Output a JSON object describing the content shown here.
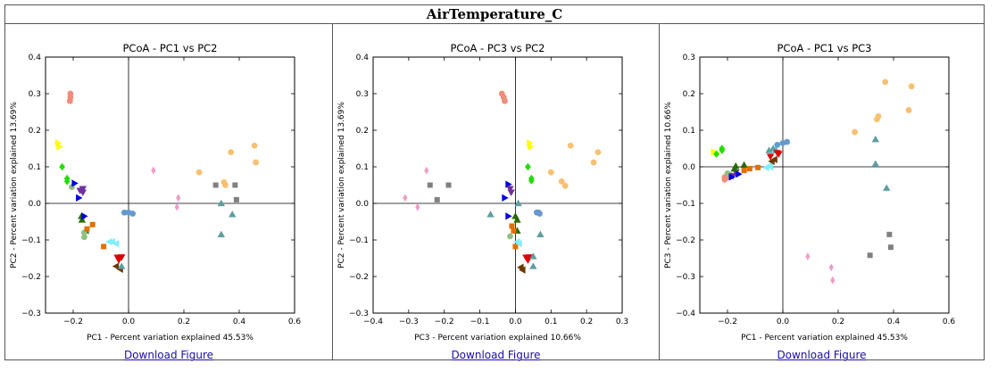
{
  "page_title": "AirTemperature_C",
  "download_label": "Download Figure",
  "chart_data": [
    {
      "type": "scatter",
      "title": "PCoA - PC1 vs PC2",
      "xlabel": "PC1 - Percent variation explained 45.53%",
      "ylabel": "PC2 - Percent variation explained 13.69%",
      "xlim": [
        -0.3,
        0.6
      ],
      "ylim": [
        -0.3,
        0.4
      ],
      "xticks": [
        -0.2,
        0.0,
        0.2,
        0.4,
        0.6
      ],
      "yticks": [
        -0.3,
        -0.2,
        -0.1,
        0.0,
        0.1,
        0.2,
        0.3,
        0.4
      ],
      "points": [
        {
          "x": -0.21,
          "y": 0.3,
          "c": "#f08c78",
          "m": "o"
        },
        {
          "x": -0.21,
          "y": 0.29,
          "c": "#f08c78",
          "m": "o"
        },
        {
          "x": -0.212,
          "y": 0.28,
          "c": "#f08c78",
          "m": "o"
        },
        {
          "x": -0.255,
          "y": 0.165,
          "c": "#ffff00",
          "m": ">"
        },
        {
          "x": -0.25,
          "y": 0.155,
          "c": "#ffff00",
          "m": ">"
        },
        {
          "x": -0.24,
          "y": 0.1,
          "c": "#22dd00",
          "m": "D"
        },
        {
          "x": -0.222,
          "y": 0.068,
          "c": "#22dd00",
          "m": "D"
        },
        {
          "x": -0.222,
          "y": 0.06,
          "c": "#22dd00",
          "m": "D"
        },
        {
          "x": -0.205,
          "y": 0.045,
          "c": "#90c080",
          "m": "o"
        },
        {
          "x": -0.195,
          "y": 0.055,
          "c": "#0000dd",
          "m": ">"
        },
        {
          "x": -0.18,
          "y": 0.015,
          "c": "#0000dd",
          "m": ">"
        },
        {
          "x": -0.175,
          "y": 0.035,
          "c": "#7030a0",
          "m": "v"
        },
        {
          "x": -0.165,
          "y": 0.03,
          "c": "#7030a0",
          "m": "v"
        },
        {
          "x": -0.165,
          "y": 0.04,
          "c": "#7030a0",
          "m": "v"
        },
        {
          "x": -0.17,
          "y": -0.035,
          "c": "#2a6a00",
          "m": "^"
        },
        {
          "x": -0.168,
          "y": -0.045,
          "c": "#2a6a00",
          "m": "^"
        },
        {
          "x": -0.155,
          "y": -0.075,
          "c": "#2a6a00",
          "m": "^"
        },
        {
          "x": -0.16,
          "y": -0.035,
          "c": "#0000dd",
          "m": ">"
        },
        {
          "x": -0.16,
          "y": -0.08,
          "c": "#90c080",
          "m": "o"
        },
        {
          "x": -0.16,
          "y": -0.092,
          "c": "#90c080",
          "m": "o"
        },
        {
          "x": -0.15,
          "y": -0.07,
          "c": "#e07000",
          "m": "s"
        },
        {
          "x": -0.13,
          "y": -0.058,
          "c": "#e07000",
          "m": "s"
        },
        {
          "x": -0.09,
          "y": -0.118,
          "c": "#e07000",
          "m": "s"
        },
        {
          "x": -0.07,
          "y": -0.105,
          "c": "#80eeff",
          "m": "<"
        },
        {
          "x": -0.058,
          "y": -0.105,
          "c": "#80eeff",
          "m": "<"
        },
        {
          "x": -0.045,
          "y": -0.11,
          "c": "#80eeff",
          "m": "<"
        },
        {
          "x": -0.04,
          "y": -0.148,
          "c": "#dd0000",
          "m": "v"
        },
        {
          "x": -0.025,
          "y": -0.147,
          "c": "#dd0000",
          "m": "v"
        },
        {
          "x": -0.035,
          "y": -0.155,
          "c": "#dd0000",
          "m": "v"
        },
        {
          "x": -0.045,
          "y": -0.172,
          "c": "#6a3a00",
          "m": "<"
        },
        {
          "x": -0.03,
          "y": -0.18,
          "c": "#6a3a00",
          "m": "<"
        },
        {
          "x": -0.025,
          "y": -0.172,
          "c": "#5f9ea0",
          "m": "^"
        },
        {
          "x": -0.015,
          "y": -0.025,
          "c": "#6699cc",
          "m": "o"
        },
        {
          "x": 0.0,
          "y": -0.025,
          "c": "#6699cc",
          "m": "o"
        },
        {
          "x": 0.015,
          "y": -0.028,
          "c": "#6699cc",
          "m": "o"
        },
        {
          "x": 0.09,
          "y": 0.09,
          "c": "#f09cc8",
          "m": "d"
        },
        {
          "x": 0.18,
          "y": 0.015,
          "c": "#f09cc8",
          "m": "d"
        },
        {
          "x": 0.175,
          "y": -0.01,
          "c": "#f09cc8",
          "m": "d"
        },
        {
          "x": 0.255,
          "y": 0.085,
          "c": "#f8c070",
          "m": "o"
        },
        {
          "x": 0.345,
          "y": 0.058,
          "c": "#f8c070",
          "m": "o"
        },
        {
          "x": 0.35,
          "y": 0.05,
          "c": "#f8c070",
          "m": "o"
        },
        {
          "x": 0.37,
          "y": 0.14,
          "c": "#f8c070",
          "m": "o"
        },
        {
          "x": 0.455,
          "y": 0.158,
          "c": "#f8c070",
          "m": "o"
        },
        {
          "x": 0.46,
          "y": 0.112,
          "c": "#f8c070",
          "m": "o"
        },
        {
          "x": 0.315,
          "y": 0.05,
          "c": "#808080",
          "m": "s"
        },
        {
          "x": 0.385,
          "y": 0.05,
          "c": "#808080",
          "m": "s"
        },
        {
          "x": 0.39,
          "y": 0.01,
          "c": "#808080",
          "m": "s"
        },
        {
          "x": 0.335,
          "y": 0.0,
          "c": "#5f9ea0",
          "m": "^"
        },
        {
          "x": 0.375,
          "y": -0.03,
          "c": "#5f9ea0",
          "m": "^"
        },
        {
          "x": 0.335,
          "y": -0.085,
          "c": "#5f9ea0",
          "m": "^"
        }
      ]
    },
    {
      "type": "scatter",
      "title": "PCoA - PC3 vs PC2",
      "xlabel": "PC3 - Percent variation explained 10.66%",
      "ylabel": "PC2 - Percent variation explained 13.69%",
      "xlim": [
        -0.4,
        0.3
      ],
      "ylim": [
        -0.3,
        0.4
      ],
      "xticks": [
        -0.4,
        -0.3,
        -0.2,
        -0.1,
        0.0,
        0.1,
        0.2,
        0.3
      ],
      "yticks": [
        -0.3,
        -0.2,
        -0.1,
        0.0,
        0.1,
        0.2,
        0.3,
        0.4
      ],
      "points": [
        {
          "x": -0.038,
          "y": 0.3,
          "c": "#f08c78",
          "m": "o"
        },
        {
          "x": -0.033,
          "y": 0.29,
          "c": "#f08c78",
          "m": "o"
        },
        {
          "x": -0.03,
          "y": 0.28,
          "c": "#f08c78",
          "m": "o"
        },
        {
          "x": 0.04,
          "y": 0.165,
          "c": "#ffff00",
          "m": ">"
        },
        {
          "x": 0.042,
          "y": 0.155,
          "c": "#ffff00",
          "m": ">"
        },
        {
          "x": 0.035,
          "y": 0.1,
          "c": "#22dd00",
          "m": "D"
        },
        {
          "x": 0.045,
          "y": 0.068,
          "c": "#22dd00",
          "m": "D"
        },
        {
          "x": 0.045,
          "y": 0.062,
          "c": "#22dd00",
          "m": "D"
        },
        {
          "x": -0.02,
          "y": 0.052,
          "c": "#0000dd",
          "m": ">"
        },
        {
          "x": -0.03,
          "y": 0.015,
          "c": "#0000dd",
          "m": ">"
        },
        {
          "x": -0.02,
          "y": -0.035,
          "c": "#0000dd",
          "m": ">"
        },
        {
          "x": -0.015,
          "y": 0.04,
          "c": "#7030a0",
          "m": "v"
        },
        {
          "x": -0.012,
          "y": 0.03,
          "c": "#7030a0",
          "m": "v"
        },
        {
          "x": -0.25,
          "y": 0.09,
          "c": "#f09cc8",
          "m": "d"
        },
        {
          "x": -0.31,
          "y": 0.015,
          "c": "#f09cc8",
          "m": "d"
        },
        {
          "x": -0.275,
          "y": -0.01,
          "c": "#f09cc8",
          "m": "d"
        },
        {
          "x": -0.24,
          "y": 0.05,
          "c": "#808080",
          "m": "s"
        },
        {
          "x": -0.188,
          "y": 0.05,
          "c": "#808080",
          "m": "s"
        },
        {
          "x": -0.22,
          "y": 0.01,
          "c": "#808080",
          "m": "s"
        },
        {
          "x": -0.07,
          "y": -0.03,
          "c": "#5f9ea0",
          "m": "^"
        },
        {
          "x": 0.008,
          "y": 0.0,
          "c": "#5f9ea0",
          "m": "^"
        },
        {
          "x": 0.07,
          "y": -0.085,
          "c": "#5f9ea0",
          "m": "^"
        },
        {
          "x": 0.0,
          "y": -0.035,
          "c": "#2a6a00",
          "m": "^"
        },
        {
          "x": 0.005,
          "y": -0.045,
          "c": "#2a6a00",
          "m": "^"
        },
        {
          "x": 0.005,
          "y": -0.075,
          "c": "#2a6a00",
          "m": "^"
        },
        {
          "x": -0.01,
          "y": -0.062,
          "c": "#e07000",
          "m": "s"
        },
        {
          "x": -0.005,
          "y": -0.075,
          "c": "#e07000",
          "m": "s"
        },
        {
          "x": 0.0,
          "y": -0.118,
          "c": "#e07000",
          "m": "s"
        },
        {
          "x": -0.015,
          "y": -0.09,
          "c": "#90c080",
          "m": "o"
        },
        {
          "x": 0.005,
          "y": -0.105,
          "c": "#80eeff",
          "m": "<"
        },
        {
          "x": 0.01,
          "y": -0.11,
          "c": "#80eeff",
          "m": "<"
        },
        {
          "x": 0.06,
          "y": -0.025,
          "c": "#6699cc",
          "m": "o"
        },
        {
          "x": 0.065,
          "y": -0.025,
          "c": "#6699cc",
          "m": "o"
        },
        {
          "x": 0.068,
          "y": -0.028,
          "c": "#6699cc",
          "m": "o"
        },
        {
          "x": 0.03,
          "y": -0.148,
          "c": "#dd0000",
          "m": "v"
        },
        {
          "x": 0.04,
          "y": -0.147,
          "c": "#dd0000",
          "m": "v"
        },
        {
          "x": 0.035,
          "y": -0.155,
          "c": "#dd0000",
          "m": "v"
        },
        {
          "x": 0.05,
          "y": -0.145,
          "c": "#5f9ea0",
          "m": "^"
        },
        {
          "x": 0.05,
          "y": -0.172,
          "c": "#5f9ea0",
          "m": "^"
        },
        {
          "x": 0.015,
          "y": -0.175,
          "c": "#6a3a00",
          "m": "<"
        },
        {
          "x": 0.02,
          "y": -0.182,
          "c": "#6a3a00",
          "m": "<"
        },
        {
          "x": 0.1,
          "y": 0.085,
          "c": "#f8c070",
          "m": "o"
        },
        {
          "x": 0.13,
          "y": 0.06,
          "c": "#f8c070",
          "m": "o"
        },
        {
          "x": 0.14,
          "y": 0.048,
          "c": "#f8c070",
          "m": "o"
        },
        {
          "x": 0.155,
          "y": 0.158,
          "c": "#f8c070",
          "m": "o"
        },
        {
          "x": 0.22,
          "y": 0.112,
          "c": "#f8c070",
          "m": "o"
        },
        {
          "x": 0.232,
          "y": 0.14,
          "c": "#f8c070",
          "m": "o"
        }
      ]
    },
    {
      "type": "scatter",
      "title": "PCoA - PC1 vs PC3",
      "xlabel": "PC1 - Percent variation explained 45.53%",
      "ylabel": "PC3 - Percent variation explained 10.66%",
      "xlim": [
        -0.3,
        0.6
      ],
      "ylim": [
        -0.4,
        0.3
      ],
      "xticks": [
        -0.2,
        0.0,
        0.2,
        0.4,
        0.6
      ],
      "yticks": [
        -0.4,
        -0.3,
        -0.2,
        -0.1,
        0.0,
        0.1,
        0.2,
        0.3
      ],
      "points": [
        {
          "x": -0.25,
          "y": 0.04,
          "c": "#ffff00",
          "m": ">"
        },
        {
          "x": -0.24,
          "y": 0.038,
          "c": "#ffff00",
          "m": ">"
        },
        {
          "x": -0.24,
          "y": 0.035,
          "c": "#22dd00",
          "m": "D"
        },
        {
          "x": -0.22,
          "y": 0.045,
          "c": "#22dd00",
          "m": "D"
        },
        {
          "x": -0.22,
          "y": 0.05,
          "c": "#22dd00",
          "m": "D"
        },
        {
          "x": -0.205,
          "y": -0.03,
          "c": "#f08c78",
          "m": "o"
        },
        {
          "x": -0.21,
          "y": -0.035,
          "c": "#f08c78",
          "m": "o"
        },
        {
          "x": -0.21,
          "y": -0.028,
          "c": "#f08c78",
          "m": "o"
        },
        {
          "x": -0.2,
          "y": -0.018,
          "c": "#90c080",
          "m": "o"
        },
        {
          "x": -0.19,
          "y": -0.022,
          "c": "#90c080",
          "m": "o"
        },
        {
          "x": -0.18,
          "y": -0.025,
          "c": "#7030a0",
          "m": "v"
        },
        {
          "x": -0.17,
          "y": -0.015,
          "c": "#7030a0",
          "m": "v"
        },
        {
          "x": -0.185,
          "y": -0.028,
          "c": "#0000dd",
          "m": ">"
        },
        {
          "x": -0.16,
          "y": -0.02,
          "c": "#0000dd",
          "m": ">"
        },
        {
          "x": -0.17,
          "y": 0.002,
          "c": "#2a6a00",
          "m": "^"
        },
        {
          "x": -0.14,
          "y": 0.005,
          "c": "#2a6a00",
          "m": "^"
        },
        {
          "x": -0.175,
          "y": -0.005,
          "c": "#2a6a00",
          "m": "^"
        },
        {
          "x": -0.14,
          "y": -0.01,
          "c": "#e07000",
          "m": "s"
        },
        {
          "x": -0.12,
          "y": -0.005,
          "c": "#e07000",
          "m": "s"
        },
        {
          "x": -0.09,
          "y": -0.002,
          "c": "#e07000",
          "m": "s"
        },
        {
          "x": -0.06,
          "y": -0.002,
          "c": "#80eeff",
          "m": "<"
        },
        {
          "x": -0.05,
          "y": 0.002,
          "c": "#80eeff",
          "m": "<"
        },
        {
          "x": -0.045,
          "y": 0.0,
          "c": "#80eeff",
          "m": "<"
        },
        {
          "x": -0.05,
          "y": 0.045,
          "c": "#5f9ea0",
          "m": "^"
        },
        {
          "x": -0.035,
          "y": 0.05,
          "c": "#5f9ea0",
          "m": "^"
        },
        {
          "x": -0.025,
          "y": 0.045,
          "c": "#5f9ea0",
          "m": "^"
        },
        {
          "x": -0.04,
          "y": 0.015,
          "c": "#6a3a00",
          "m": "<"
        },
        {
          "x": -0.03,
          "y": 0.02,
          "c": "#6a3a00",
          "m": "<"
        },
        {
          "x": -0.045,
          "y": 0.028,
          "c": "#dd0000",
          "m": "v"
        },
        {
          "x": -0.02,
          "y": 0.038,
          "c": "#dd0000",
          "m": "v"
        },
        {
          "x": -0.015,
          "y": 0.035,
          "c": "#dd0000",
          "m": "v"
        },
        {
          "x": -0.02,
          "y": 0.06,
          "c": "#6699cc",
          "m": "o"
        },
        {
          "x": 0.0,
          "y": 0.065,
          "c": "#6699cc",
          "m": "o"
        },
        {
          "x": 0.015,
          "y": 0.068,
          "c": "#6699cc",
          "m": "o"
        },
        {
          "x": 0.26,
          "y": 0.095,
          "c": "#f8c070",
          "m": "o"
        },
        {
          "x": 0.34,
          "y": 0.13,
          "c": "#f8c070",
          "m": "o"
        },
        {
          "x": 0.345,
          "y": 0.138,
          "c": "#f8c070",
          "m": "o"
        },
        {
          "x": 0.37,
          "y": 0.232,
          "c": "#f8c070",
          "m": "o"
        },
        {
          "x": 0.455,
          "y": 0.155,
          "c": "#f8c070",
          "m": "o"
        },
        {
          "x": 0.465,
          "y": 0.22,
          "c": "#f8c070",
          "m": "o"
        },
        {
          "x": 0.335,
          "y": 0.075,
          "c": "#5f9ea0",
          "m": "^"
        },
        {
          "x": 0.335,
          "y": 0.008,
          "c": "#5f9ea0",
          "m": "^"
        },
        {
          "x": 0.375,
          "y": -0.058,
          "c": "#5f9ea0",
          "m": "^"
        },
        {
          "x": 0.315,
          "y": -0.242,
          "c": "#808080",
          "m": "s"
        },
        {
          "x": 0.385,
          "y": -0.185,
          "c": "#808080",
          "m": "s"
        },
        {
          "x": 0.39,
          "y": -0.22,
          "c": "#808080",
          "m": "s"
        },
        {
          "x": 0.09,
          "y": -0.245,
          "c": "#f09cc8",
          "m": "d"
        },
        {
          "x": 0.175,
          "y": -0.275,
          "c": "#f09cc8",
          "m": "d"
        },
        {
          "x": 0.18,
          "y": -0.31,
          "c": "#f09cc8",
          "m": "d"
        }
      ]
    }
  ]
}
